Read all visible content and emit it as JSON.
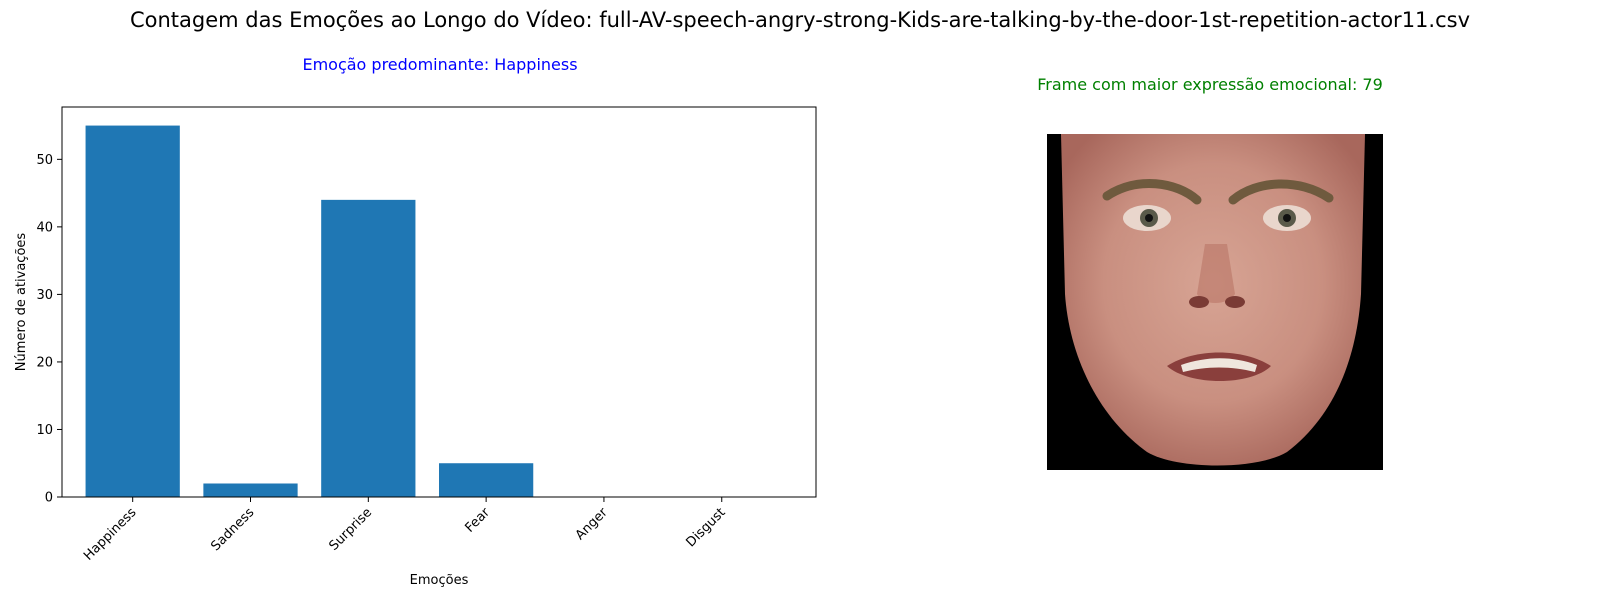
{
  "title": "Contagem das Emoções ao Longo do Vídeo: full-AV-speech-angry-strong-Kids-are-talking-by-the-door-1st-repetition-actor11.csv",
  "predominant_label": "Emoção predominante: Happiness",
  "frame_label": "Frame com maior expressão emocional: 79",
  "colors": {
    "bar": "#1f77b4",
    "predominant": "#0000ff",
    "frame": "#008000",
    "skin": "#c98f80"
  },
  "face_image": {
    "icon": "face-photo-icon",
    "description_visible": false
  },
  "chart_data": {
    "type": "bar",
    "categories": [
      "Happiness",
      "Sadness",
      "Surprise",
      "Fear",
      "Anger",
      "Disgust"
    ],
    "values": [
      55,
      2,
      44,
      5,
      0,
      0
    ],
    "xlabel": "Emoções",
    "ylabel": "Número de ativações",
    "ylim": [
      0,
      57.75
    ],
    "yticks": [
      0,
      10,
      20,
      30,
      40,
      50
    ],
    "grid": false,
    "legend": "none"
  }
}
